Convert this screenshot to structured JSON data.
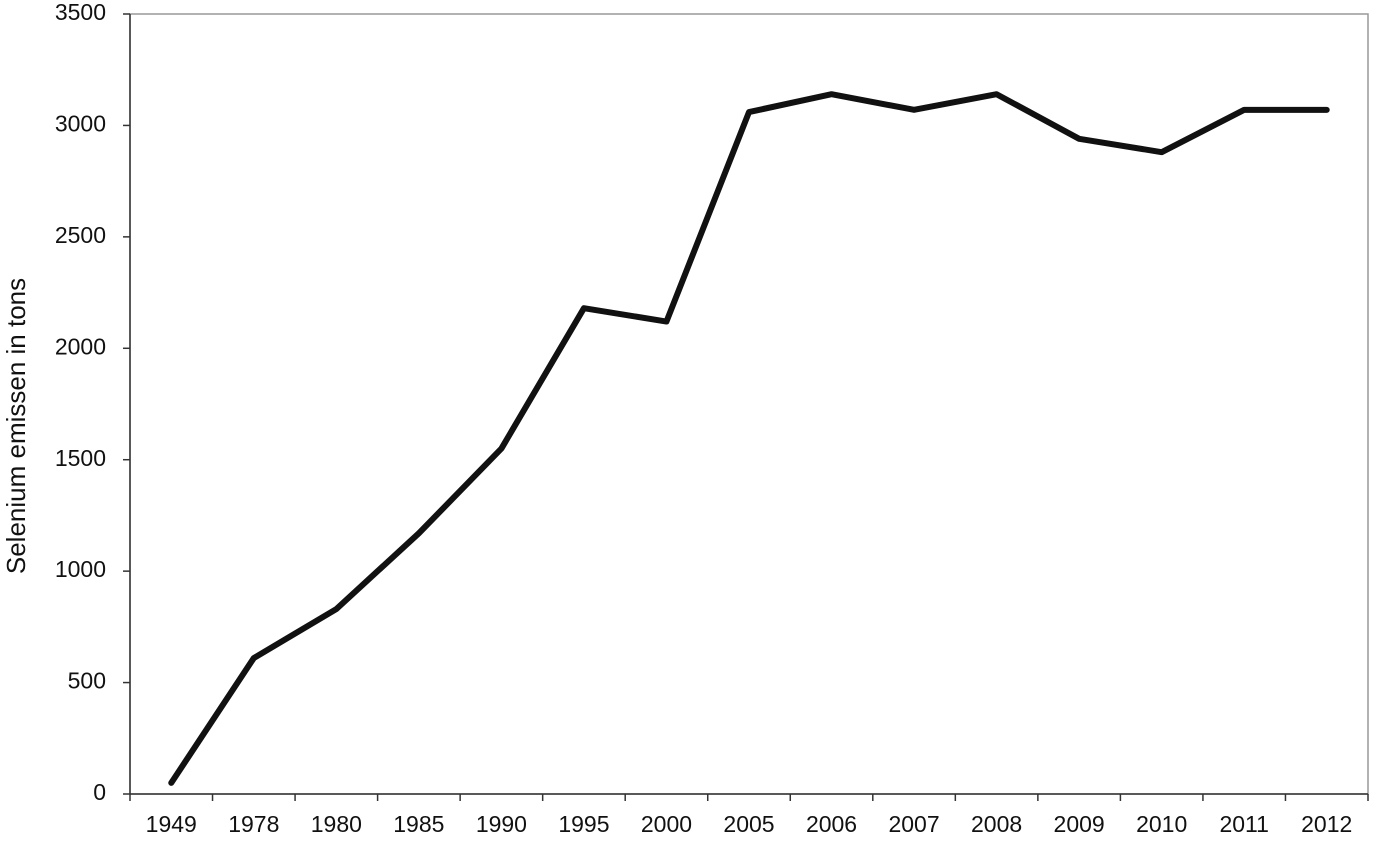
{
  "chart_data": {
    "type": "line",
    "y_label": "Selenium emissen in tons",
    "categories": [
      "1949",
      "1978",
      "1980",
      "1985",
      "1990",
      "1995",
      "2000",
      "2005",
      "2006",
      "2007",
      "2008",
      "2009",
      "2010",
      "2011",
      "2012"
    ],
    "values": [
      50,
      610,
      830,
      1170,
      1550,
      2180,
      2120,
      3060,
      3140,
      3070,
      3140,
      2940,
      2880,
      3070,
      3070
    ],
    "color": "#111111",
    "ylim": [
      0,
      3500
    ],
    "yticks": [
      0,
      500,
      1000,
      1500,
      2000,
      2500,
      3000,
      3500
    ],
    "grid": false
  }
}
